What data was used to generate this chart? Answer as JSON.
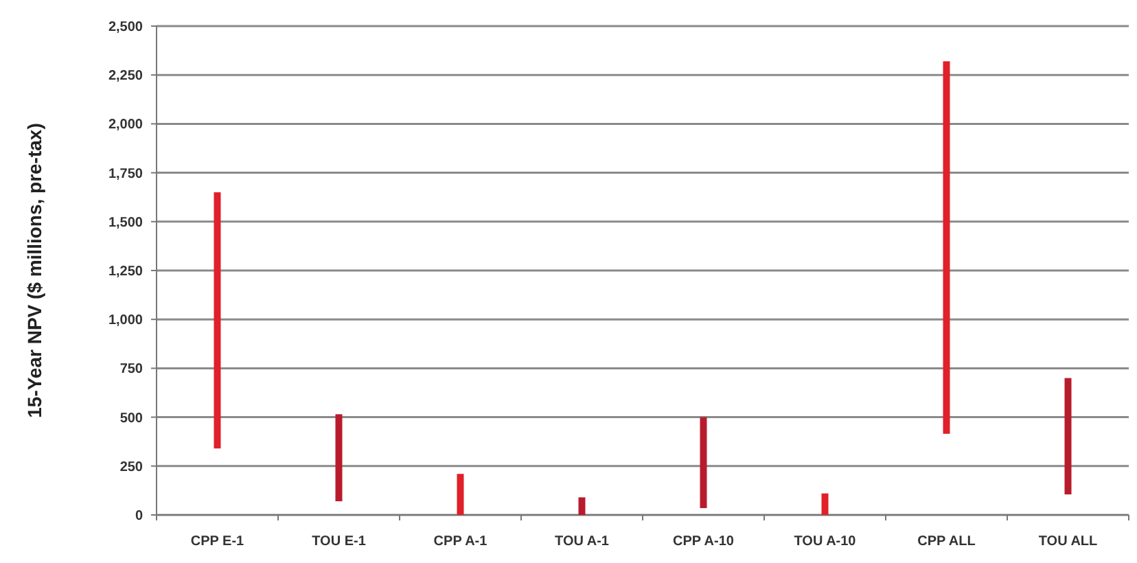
{
  "chart_data": {
    "type": "bar",
    "ylabel": "15-Year NPV ($ millions, pre-tax)",
    "categories": [
      "CPP E-1",
      "TOU E-1",
      "CPP A-1",
      "TOU A-1",
      "CPP A-10",
      "TOU A-10",
      "CPP ALL",
      "TOU ALL"
    ],
    "base": [
      340,
      70,
      0,
      0,
      35,
      0,
      415,
      105
    ],
    "values": [
      1310,
      445,
      210,
      90,
      465,
      110,
      1905,
      595
    ],
    "colors": [
      "#e0202a",
      "#b81c2c",
      "#e0202a",
      "#b81c2c",
      "#b81c2c",
      "#e0202a",
      "#e0202a",
      "#b81c2c"
    ],
    "ylim": [
      0,
      2500
    ],
    "yticks": [
      {
        "value": 0,
        "label": "0"
      },
      {
        "value": 250,
        "label": "250"
      },
      {
        "value": 500,
        "label": "500"
      },
      {
        "value": 750,
        "label": "750"
      },
      {
        "value": 1000,
        "label": "1,000"
      },
      {
        "value": 1250,
        "label": "1,250"
      },
      {
        "value": 1500,
        "label": "1,500"
      },
      {
        "value": 1750,
        "label": "1,750"
      },
      {
        "value": 2000,
        "label": "2,000"
      },
      {
        "value": 2250,
        "label": "2,250"
      },
      {
        "value": 2500,
        "label": "2,500"
      }
    ],
    "grid": "y"
  }
}
